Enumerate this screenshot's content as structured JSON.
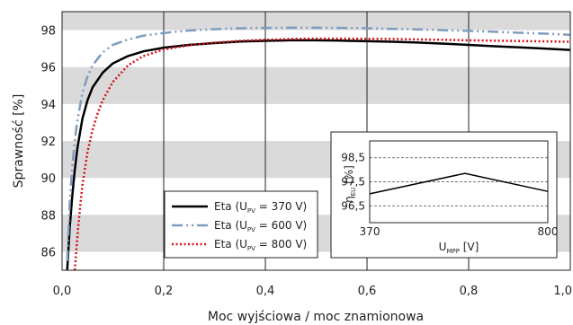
{
  "chart_data": [
    {
      "type": "line",
      "xlabel": "Moc wyjściowa / moc znamionowa",
      "ylabel": "Sprawność [%]",
      "xlim": [
        0,
        1.0
      ],
      "ylim": [
        85,
        99
      ],
      "x_ticks": [
        "0,0",
        "0,2",
        "0,4",
        "0,6",
        "0,8",
        "1,0"
      ],
      "y_ticks": [
        "86",
        "88",
        "90",
        "92",
        "94",
        "96",
        "98"
      ],
      "grid": "vertical lines at x ticks, alternating gray bands at y",
      "legend_position": "bottom-center",
      "series": [
        {
          "name_prefix": "Eta (U",
          "name_sub": "PV",
          "name_suffix": " = 370 V)",
          "color": "#000000",
          "style": "solid",
          "x": [
            0.01,
            0.015,
            0.02,
            0.025,
            0.03,
            0.04,
            0.05,
            0.06,
            0.08,
            0.1,
            0.13,
            0.16,
            0.2,
            0.25,
            0.3,
            0.35,
            0.4,
            0.45,
            0.5,
            0.55,
            0.6,
            0.65,
            0.7,
            0.75,
            0.8,
            0.85,
            0.9,
            0.95,
            1.0
          ],
          "y": [
            85.0,
            87.3,
            89.0,
            90.4,
            91.6,
            93.2,
            94.2,
            94.9,
            95.7,
            96.2,
            96.6,
            96.85,
            97.05,
            97.2,
            97.3,
            97.38,
            97.42,
            97.45,
            97.45,
            97.43,
            97.4,
            97.37,
            97.33,
            97.27,
            97.2,
            97.13,
            97.07,
            97.0,
            96.93
          ]
        },
        {
          "name_prefix": "Eta (U",
          "name_sub": "PV",
          "name_suffix": " = 600 V)",
          "color": "#7f9cbf",
          "style": "dashdot",
          "x": [
            0.01,
            0.015,
            0.02,
            0.025,
            0.03,
            0.04,
            0.05,
            0.06,
            0.08,
            0.1,
            0.13,
            0.16,
            0.2,
            0.25,
            0.3,
            0.35,
            0.4,
            0.45,
            0.5,
            0.55,
            0.6,
            0.65,
            0.7,
            0.75,
            0.8,
            0.85,
            0.9,
            0.95,
            1.0
          ],
          "y": [
            85.5,
            88.6,
            90.6,
            92.0,
            93.1,
            94.6,
            95.5,
            96.1,
            96.8,
            97.2,
            97.5,
            97.7,
            97.85,
            97.98,
            98.05,
            98.1,
            98.12,
            98.13,
            98.13,
            98.12,
            98.1,
            98.07,
            98.04,
            98.0,
            97.96,
            97.91,
            97.86,
            97.81,
            97.75
          ]
        },
        {
          "name_prefix": "Eta (U",
          "name_sub": "PV",
          "name_suffix": " = 800 V)",
          "color": "#d4101b",
          "style": "dotted",
          "x": [
            0.025,
            0.03,
            0.035,
            0.04,
            0.05,
            0.06,
            0.07,
            0.08,
            0.1,
            0.13,
            0.16,
            0.2,
            0.25,
            0.3,
            0.35,
            0.4,
            0.45,
            0.5,
            0.55,
            0.6,
            0.65,
            0.7,
            0.75,
            0.8,
            0.85,
            0.9,
            0.95,
            1.0
          ],
          "y": [
            85.0,
            86.8,
            88.3,
            89.6,
            91.4,
            92.6,
            93.5,
            94.2,
            95.2,
            96.1,
            96.6,
            96.95,
            97.18,
            97.32,
            97.42,
            97.48,
            97.52,
            97.54,
            97.54,
            97.53,
            97.52,
            97.5,
            97.48,
            97.45,
            97.43,
            97.41,
            97.39,
            97.37
          ]
        }
      ]
    },
    {
      "type": "line",
      "ylabel_main": "η",
      "ylabel_sub": "EU",
      "ylabel_suffix": " [%]",
      "xlabel_main": "U",
      "xlabel_sub": "MPP",
      "xlabel_suffix": " [V]",
      "xlim": [
        370,
        800
      ],
      "ylim": [
        95.8,
        99.2
      ],
      "x_ticks": [
        "370",
        "800"
      ],
      "y_ticks": [
        "96,5",
        "97,5",
        "98,5"
      ],
      "grid": "dashed horizontal",
      "series": [
        {
          "x": [
            370,
            600,
            800
          ],
          "y": [
            97.0,
            97.85,
            97.1
          ],
          "color": "#000000"
        }
      ]
    }
  ]
}
